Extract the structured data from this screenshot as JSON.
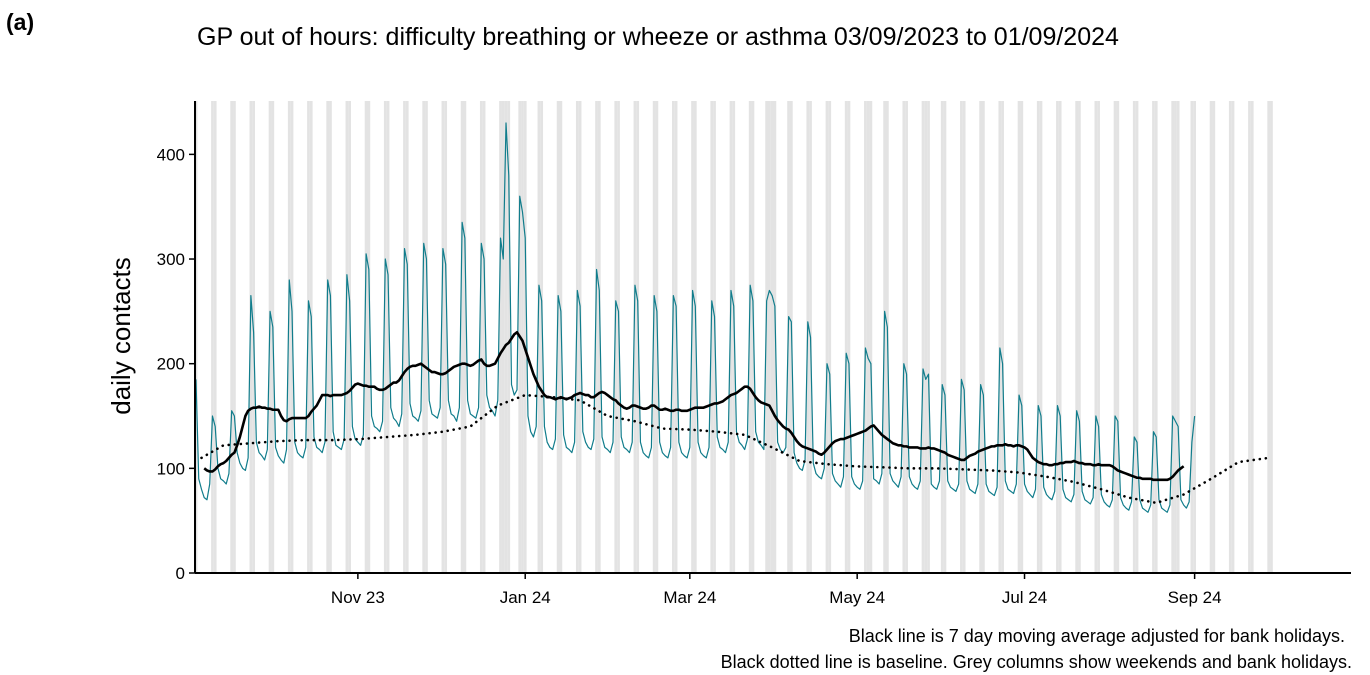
{
  "panel_label": "(a)",
  "chart_data": {
    "type": "line",
    "title": "GP out of hours: difficulty breathing or wheeze or asthma 03/09/2023 to 01/09/2024",
    "ylabel": "daily contacts",
    "notes": [
      "Black line is 7 day moving average adjusted for bank holidays.",
      "Black dotted line is baseline. Grey columns show weekends and bank holidays."
    ],
    "xlim": [
      0,
      421
    ],
    "ylim": [
      0,
      451
    ],
    "xticks": [
      {
        "value": 59,
        "label": "Nov 23"
      },
      {
        "value": 120,
        "label": "Jan 24"
      },
      {
        "value": 180,
        "label": "Mar 24"
      },
      {
        "value": 241,
        "label": "May 24"
      },
      {
        "value": 302,
        "label": "Jul 24"
      },
      {
        "value": 364,
        "label": "Sep 24"
      }
    ],
    "yticks": [
      0,
      100,
      200,
      300,
      400
    ],
    "shaded_color": "#e3e3e3",
    "shaded_days": [
      0,
      6,
      7,
      13,
      14,
      20,
      21,
      27,
      28,
      34,
      35,
      41,
      42,
      48,
      49,
      55,
      56,
      62,
      63,
      69,
      70,
      76,
      77,
      83,
      84,
      90,
      91,
      97,
      98,
      104,
      105,
      111,
      112,
      113,
      114,
      118,
      119,
      120,
      125,
      126,
      132,
      133,
      139,
      140,
      146,
      147,
      153,
      154,
      160,
      161,
      167,
      168,
      174,
      175,
      181,
      182,
      188,
      189,
      195,
      196,
      202,
      203,
      208,
      209,
      210,
      211,
      216,
      217,
      223,
      224,
      230,
      231,
      237,
      238,
      244,
      245,
      246,
      251,
      252,
      258,
      259,
      265,
      266,
      267,
      272,
      273,
      279,
      280,
      286,
      287,
      293,
      294,
      300,
      301,
      307,
      308,
      314,
      315,
      321,
      322,
      328,
      329,
      335,
      336,
      342,
      343,
      349,
      350,
      356,
      357,
      358,
      363,
      364,
      370,
      371,
      377,
      378,
      384,
      385,
      391,
      392
    ],
    "x": [
      0,
      1,
      2,
      3,
      4,
      5,
      6,
      7,
      8,
      9,
      10,
      11,
      12,
      13,
      14,
      15,
      16,
      17,
      18,
      19,
      20,
      21,
      22,
      23,
      24,
      25,
      26,
      27,
      28,
      29,
      30,
      31,
      32,
      33,
      34,
      35,
      36,
      37,
      38,
      39,
      40,
      41,
      42,
      43,
      44,
      45,
      46,
      47,
      48,
      49,
      50,
      51,
      52,
      53,
      54,
      55,
      56,
      57,
      58,
      59,
      60,
      61,
      62,
      63,
      64,
      65,
      66,
      67,
      68,
      69,
      70,
      71,
      72,
      73,
      74,
      75,
      76,
      77,
      78,
      79,
      80,
      81,
      82,
      83,
      84,
      85,
      86,
      87,
      88,
      89,
      90,
      91,
      92,
      93,
      94,
      95,
      96,
      97,
      98,
      99,
      100,
      101,
      102,
      103,
      104,
      105,
      106,
      107,
      108,
      109,
      110,
      111,
      112,
      113,
      114,
      115,
      116,
      117,
      118,
      119,
      120,
      121,
      122,
      123,
      124,
      125,
      126,
      127,
      128,
      129,
      130,
      131,
      132,
      133,
      134,
      135,
      136,
      137,
      138,
      139,
      140,
      141,
      142,
      143,
      144,
      145,
      146,
      147,
      148,
      149,
      150,
      151,
      152,
      153,
      154,
      155,
      156,
      157,
      158,
      159,
      160,
      161,
      162,
      163,
      164,
      165,
      166,
      167,
      168,
      169,
      170,
      171,
      172,
      173,
      174,
      175,
      176,
      177,
      178,
      179,
      180,
      181,
      182,
      183,
      184,
      185,
      186,
      187,
      188,
      189,
      190,
      191,
      192,
      193,
      194,
      195,
      196,
      197,
      198,
      199,
      200,
      201,
      202,
      203,
      204,
      205,
      206,
      207,
      208,
      209,
      210,
      211,
      212,
      213,
      214,
      215,
      216,
      217,
      218,
      219,
      220,
      221,
      222,
      223,
      224,
      225,
      226,
      227,
      228,
      229,
      230,
      231,
      232,
      233,
      234,
      235,
      236,
      237,
      238,
      239,
      240,
      241,
      242,
      243,
      244,
      245,
      246,
      247,
      248,
      249,
      250,
      251,
      252,
      253,
      254,
      255,
      256,
      257,
      258,
      259,
      260,
      261,
      262,
      263,
      264,
      265,
      266,
      267,
      268,
      269,
      270,
      271,
      272,
      273,
      274,
      275,
      276,
      277,
      278,
      279,
      280,
      281,
      282,
      283,
      284,
      285,
      286,
      287,
      288,
      289,
      290,
      291,
      292,
      293,
      294,
      295,
      296,
      297,
      298,
      299,
      300,
      301,
      302,
      303,
      304,
      305,
      306,
      307,
      308,
      309,
      310,
      311,
      312,
      313,
      314,
      315,
      316,
      317,
      318,
      319,
      320,
      321,
      322,
      323,
      324,
      325,
      326,
      327,
      328,
      329,
      330,
      331,
      332,
      333,
      334,
      335,
      336,
      337,
      338,
      339,
      340,
      341,
      342,
      343,
      344,
      345,
      346,
      347,
      348,
      349,
      350,
      351,
      352,
      353,
      354,
      355,
      356,
      357,
      358,
      359,
      360,
      361,
      362,
      363,
      364
    ],
    "series": [
      {
        "color": "#117d8c",
        "width": 1.2,
        "values": [
          185,
          90,
          80,
          72,
          70,
          85,
          150,
          140,
          100,
          90,
          88,
          85,
          95,
          155,
          150,
          115,
          105,
          100,
          98,
          110,
          265,
          230,
          125,
          115,
          112,
          108,
          118,
          250,
          235,
          120,
          112,
          108,
          105,
          118,
          280,
          250,
          125,
          115,
          112,
          110,
          120,
          260,
          245,
          130,
          120,
          118,
          115,
          125,
          280,
          265,
          135,
          122,
          120,
          118,
          128,
          285,
          260,
          140,
          128,
          125,
          122,
          132,
          305,
          290,
          150,
          140,
          138,
          135,
          145,
          300,
          285,
          158,
          148,
          145,
          140,
          152,
          310,
          295,
          162,
          150,
          148,
          145,
          155,
          315,
          300,
          165,
          152,
          150,
          148,
          158,
          310,
          295,
          165,
          152,
          150,
          145,
          158,
          335,
          320,
          165,
          152,
          150,
          148,
          158,
          315,
          300,
          170,
          158,
          155,
          150,
          165,
          320,
          300,
          430,
          380,
          180,
          170,
          175,
          360,
          345,
          320,
          150,
          135,
          130,
          140,
          275,
          260,
          140,
          125,
          120,
          118,
          128,
          265,
          250,
          132,
          120,
          118,
          115,
          125,
          270,
          255,
          135,
          125,
          120,
          118,
          128,
          290,
          270,
          130,
          120,
          118,
          115,
          125,
          260,
          250,
          130,
          120,
          118,
          115,
          125,
          275,
          260,
          125,
          115,
          112,
          110,
          120,
          265,
          250,
          125,
          115,
          112,
          110,
          120,
          265,
          255,
          125,
          115,
          112,
          110,
          120,
          270,
          255,
          125,
          115,
          112,
          110,
          120,
          260,
          245,
          130,
          120,
          118,
          115,
          125,
          270,
          255,
          135,
          125,
          122,
          118,
          128,
          275,
          260,
          135,
          125,
          122,
          118,
          260,
          270,
          265,
          255,
          125,
          118,
          115,
          120,
          245,
          240,
          115,
          105,
          100,
          98,
          108,
          240,
          225,
          105,
          95,
          92,
          90,
          100,
          200,
          190,
          95,
          88,
          85,
          82,
          92,
          210,
          200,
          92,
          85,
          82,
          80,
          88,
          215,
          205,
          200,
          90,
          88,
          85,
          95,
          250,
          235,
          95,
          88,
          85,
          82,
          92,
          200,
          190,
          92,
          85,
          82,
          80,
          88,
          195,
          185,
          190,
          85,
          82,
          80,
          88,
          180,
          170,
          88,
          82,
          80,
          78,
          85,
          185,
          175,
          88,
          80,
          78,
          76,
          85,
          180,
          170,
          85,
          78,
          76,
          74,
          82,
          215,
          200,
          88,
          80,
          78,
          76,
          85,
          170,
          160,
          85,
          78,
          75,
          72,
          80,
          160,
          150,
          82,
          75,
          72,
          70,
          78,
          160,
          150,
          80,
          72,
          70,
          68,
          75,
          155,
          145,
          78,
          70,
          68,
          66,
          72,
          150,
          140,
          75,
          68,
          65,
          63,
          70,
          150,
          145,
          72,
          65,
          62,
          60,
          68,
          130,
          125,
          70,
          62,
          60,
          58,
          65,
          135,
          130,
          70,
          62,
          60,
          58,
          65,
          150,
          145,
          140,
          70,
          65,
          62,
          68,
          125,
          150
        ]
      },
      {
        "color": "#000000",
        "width": 2.6,
        "values": [
          null,
          null,
          null,
          100,
          98,
          97,
          97,
          99,
          102,
          104,
          105,
          107,
          110,
          113,
          115,
          122,
          130,
          140,
          150,
          155,
          157,
          158,
          158,
          159,
          158,
          158,
          157,
          157,
          156,
          156,
          156,
          150,
          146,
          145,
          147,
          148,
          148,
          148,
          148,
          148,
          148,
          150,
          154,
          157,
          160,
          165,
          170,
          170,
          170,
          169,
          170,
          170,
          170,
          170,
          171,
          172,
          174,
          177,
          180,
          181,
          180,
          179,
          179,
          178,
          178,
          178,
          176,
          175,
          175,
          176,
          178,
          180,
          182,
          182,
          184,
          188,
          192,
          195,
          197,
          198,
          198,
          199,
          200,
          198,
          196,
          194,
          192,
          192,
          191,
          190,
          190,
          191,
          193,
          195,
          197,
          198,
          199,
          200,
          200,
          199,
          198,
          199,
          201,
          203,
          204,
          200,
          198,
          198,
          199,
          200,
          205,
          210,
          214,
          218,
          220,
          224,
          228,
          230,
          226,
          222,
          214,
          206,
          198,
          190,
          184,
          178,
          174,
          170,
          168,
          168,
          167,
          166,
          167,
          168,
          167,
          166,
          167,
          168,
          170,
          171,
          172,
          171,
          170,
          170,
          168,
          168,
          170,
          172,
          173,
          172,
          170,
          168,
          166,
          165,
          162,
          160,
          158,
          157,
          158,
          160,
          160,
          159,
          158,
          157,
          157,
          158,
          160,
          160,
          158,
          156,
          156,
          157,
          156,
          155,
          155,
          156,
          156,
          155,
          155,
          155,
          156,
          157,
          158,
          158,
          158,
          158,
          159,
          160,
          161,
          162,
          162,
          163,
          164,
          166,
          168,
          170,
          171,
          172,
          174,
          176,
          178,
          178,
          176,
          172,
          168,
          165,
          163,
          162,
          161,
          160,
          155,
          150,
          146,
          143,
          140,
          138,
          137,
          134,
          130,
          126,
          123,
          121,
          120,
          119,
          118,
          117,
          116,
          114,
          113,
          115,
          118,
          121,
          124,
          126,
          127,
          128,
          128,
          129,
          130,
          131,
          132,
          133,
          134,
          135,
          136,
          138,
          140,
          141,
          138,
          135,
          132,
          130,
          128,
          126,
          124,
          123,
          122,
          122,
          121,
          121,
          120,
          120,
          120,
          120,
          119,
          119,
          119,
          120,
          119,
          119,
          118,
          117,
          116,
          115,
          113,
          112,
          111,
          110,
          109,
          108,
          108,
          110,
          112,
          113,
          114,
          116,
          117,
          118,
          119,
          120,
          121,
          121,
          122,
          122,
          122,
          123,
          122,
          122,
          121,
          122,
          122,
          121,
          120,
          118,
          114,
          110,
          108,
          106,
          105,
          104,
          104,
          103,
          103,
          104,
          104,
          105,
          105,
          106,
          106,
          106,
          107,
          106,
          105,
          105,
          104,
          104,
          104,
          103,
          103,
          104,
          103,
          103,
          103,
          103,
          102,
          100,
          98,
          97,
          96,
          95,
          94,
          93,
          92,
          91,
          91,
          90,
          90,
          90,
          90,
          89,
          89,
          89,
          89,
          89,
          89,
          90,
          92,
          95,
          98,
          100,
          102,
          null,
          null,
          null,
          null
        ]
      },
      {
        "color": "#000000",
        "width": 2.6,
        "dash": "dotted",
        "x": [
          2,
          10,
          20,
          30,
          40,
          50,
          60,
          70,
          80,
          90,
          100,
          110,
          120,
          130,
          140,
          150,
          160,
          170,
          180,
          190,
          200,
          210,
          220,
          230,
          240,
          250,
          260,
          270,
          280,
          290,
          300,
          310,
          320,
          330,
          340,
          350,
          360,
          370,
          380,
          391
        ],
        "values": [
          110,
          122,
          124,
          126,
          127,
          127,
          128,
          130,
          132,
          135,
          140,
          160,
          170,
          168,
          165,
          150,
          145,
          138,
          137,
          135,
          132,
          120,
          107,
          104,
          102,
          101,
          100,
          100,
          99,
          98,
          96,
          92,
          87,
          80,
          72,
          67,
          75,
          90,
          106,
          110
        ]
      }
    ]
  }
}
